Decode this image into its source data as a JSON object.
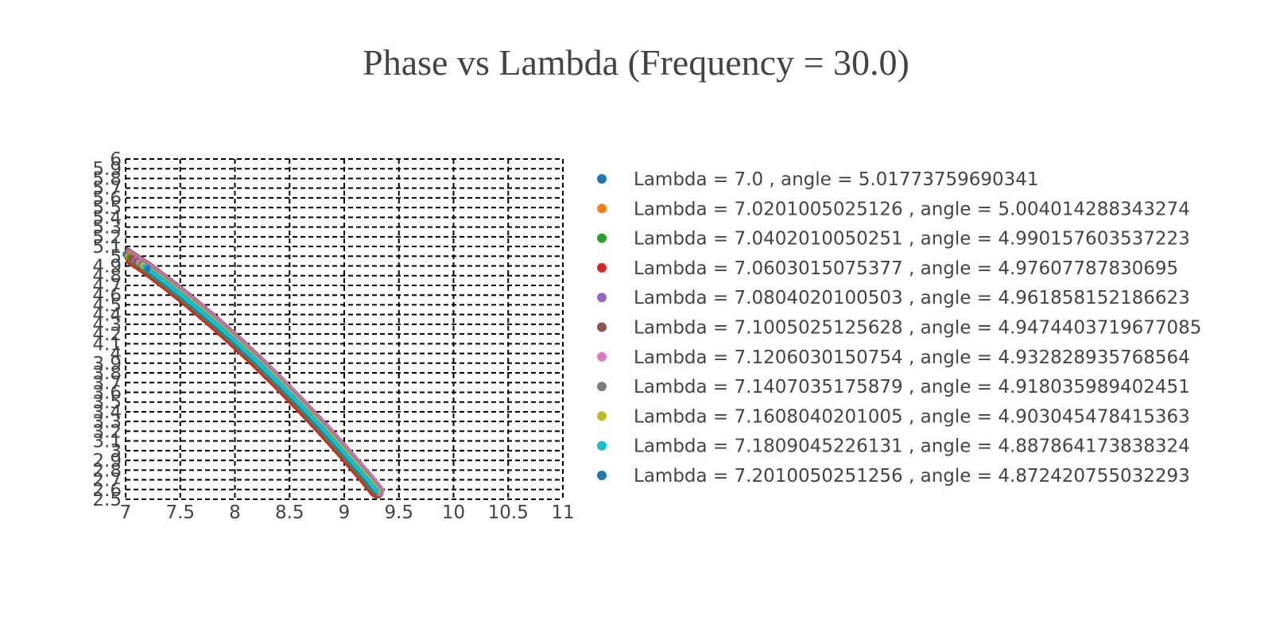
{
  "chart_data": {
    "type": "scatter",
    "title": "Phase vs Lambda (Frequency = 30.0)",
    "xlabel": "",
    "ylabel": "",
    "xlim": [
      7,
      11
    ],
    "ylim": [
      2.5,
      6
    ],
    "x_ticks": [
      "7",
      "7.5",
      "8",
      "8.5",
      "9",
      "9.5",
      "10",
      "10.5",
      "11"
    ],
    "y_ticks": [
      "2.5",
      "2.6",
      "2.7",
      "2.8",
      "2.9",
      "3",
      "3.1",
      "3.2",
      "3.3",
      "3.4",
      "3.5",
      "3.6",
      "3.7",
      "3.8",
      "3.9",
      "4",
      "4.1",
      "4.2",
      "4.3",
      "4.4",
      "4.5",
      "4.6",
      "4.7",
      "4.8",
      "4.9",
      "5",
      "5.1",
      "5.2",
      "5.3",
      "5.4",
      "5.5",
      "5.6",
      "5.7",
      "5.8",
      "5.9",
      "6"
    ],
    "grid": true,
    "grid_style": "dashed",
    "legend_position": "right",
    "series": [
      {
        "name": "Lambda = 7.0 , angle = 5.01773759690341",
        "color": "#1f77b4",
        "x": [
          7.0
        ],
        "y": [
          5.01773759690341
        ]
      },
      {
        "name": "Lambda = 7.0201005025126 , angle = 5.004014288343274",
        "color": "#ff7f0e",
        "x": [
          7.0201005025126
        ],
        "y": [
          5.004014288343274
        ]
      },
      {
        "name": "Lambda = 7.0402010050251 , angle = 4.990157603537223",
        "color": "#2ca02c",
        "x": [
          7.0402010050251
        ],
        "y": [
          4.990157603537223
        ]
      },
      {
        "name": "Lambda = 7.0603015075377 , angle = 4.97607787830695",
        "color": "#d62728",
        "x": [
          7.0603015075377
        ],
        "y": [
          4.97607787830695
        ]
      },
      {
        "name": "Lambda = 7.0804020100503 , angle = 4.961858152186623",
        "color": "#9467bd",
        "x": [
          7.0804020100503
        ],
        "y": [
          4.961858152186623
        ]
      },
      {
        "name": "Lambda = 7.1005025125628 , angle = 4.9474403719677085",
        "color": "#8c564b",
        "x": [
          7.1005025125628
        ],
        "y": [
          4.9474403719677085
        ]
      },
      {
        "name": "Lambda = 7.1206030150754 , angle = 4.932828935768564",
        "color": "#e377c2",
        "x": [
          7.1206030150754
        ],
        "y": [
          4.932828935768564
        ]
      },
      {
        "name": "Lambda = 7.1407035175879 , angle = 4.918035989402451",
        "color": "#7f7f7f",
        "x": [
          7.1407035175879
        ],
        "y": [
          4.918035989402451
        ]
      },
      {
        "name": "Lambda = 7.1608040201005 , angle = 4.903045478415363",
        "color": "#bcbd22",
        "x": [
          7.1608040201005
        ],
        "y": [
          4.903045478415363
        ]
      },
      {
        "name": "Lambda = 7.1809045226131 , angle = 4.887864173838324",
        "color": "#17becf",
        "x": [
          7.1809045226131
        ],
        "y": [
          4.887864173838324
        ]
      },
      {
        "name": "Lambda = 7.2010050251256 , angle = 4.872420755032293",
        "color": "#1f77b4",
        "x": [
          7.2010050251256
        ],
        "y": [
          4.872420755032293
        ]
      }
    ],
    "trend": {
      "x": [
        7.0,
        7.2,
        7.4,
        7.6,
        7.8,
        8.0,
        8.2,
        8.4,
        8.6,
        8.8,
        9.0,
        9.2,
        9.3
      ],
      "y": [
        5.02,
        4.87,
        4.7,
        4.52,
        4.33,
        4.13,
        3.92,
        3.7,
        3.47,
        3.23,
        2.98,
        2.72,
        2.58
      ]
    }
  }
}
